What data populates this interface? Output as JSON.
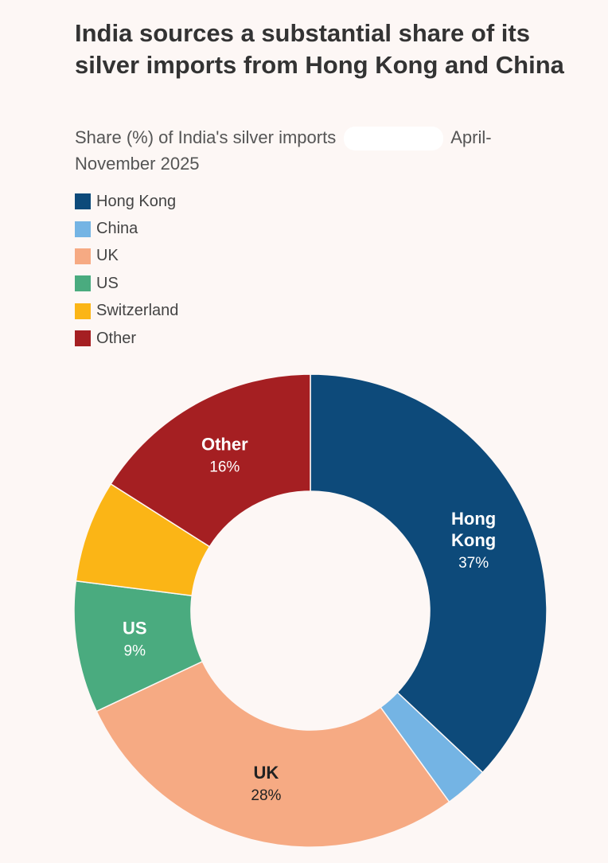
{
  "title": "India sources a substantial share of its silver imports from Hong Kong and China",
  "subtitle_before": "Share (%) of India's silver imports",
  "subtitle_after": "April-November 2025",
  "chart_data": {
    "type": "pie",
    "style": "donut",
    "legend_position": "top-left",
    "categories": [
      "Hong Kong",
      "China",
      "UK",
      "US",
      "Switzerland",
      "Other"
    ],
    "values": [
      37,
      3,
      28,
      9,
      7,
      16
    ],
    "colors": [
      "#0d4a7a",
      "#74b4e4",
      "#f6aa83",
      "#4aab7f",
      "#fbb516",
      "#a51f22"
    ],
    "data_labels": [
      {
        "name_lines": [
          "Hong",
          "Kong"
        ],
        "value_text": "37%"
      },
      null,
      {
        "name_lines": [
          "UK"
        ],
        "value_text": "28%"
      },
      {
        "name_lines": [
          "US"
        ],
        "value_text": "9%"
      },
      null,
      {
        "name_lines": [
          "Other"
        ],
        "value_text": "16%"
      }
    ]
  },
  "legend": [
    {
      "label": "Hong Kong",
      "color": "#0d4a7a"
    },
    {
      "label": "China",
      "color": "#74b4e4"
    },
    {
      "label": "UK",
      "color": "#f6aa83"
    },
    {
      "label": "US",
      "color": "#4aab7f"
    },
    {
      "label": "Switzerland",
      "color": "#fbb516"
    },
    {
      "label": "Other",
      "color": "#a51f22"
    }
  ]
}
